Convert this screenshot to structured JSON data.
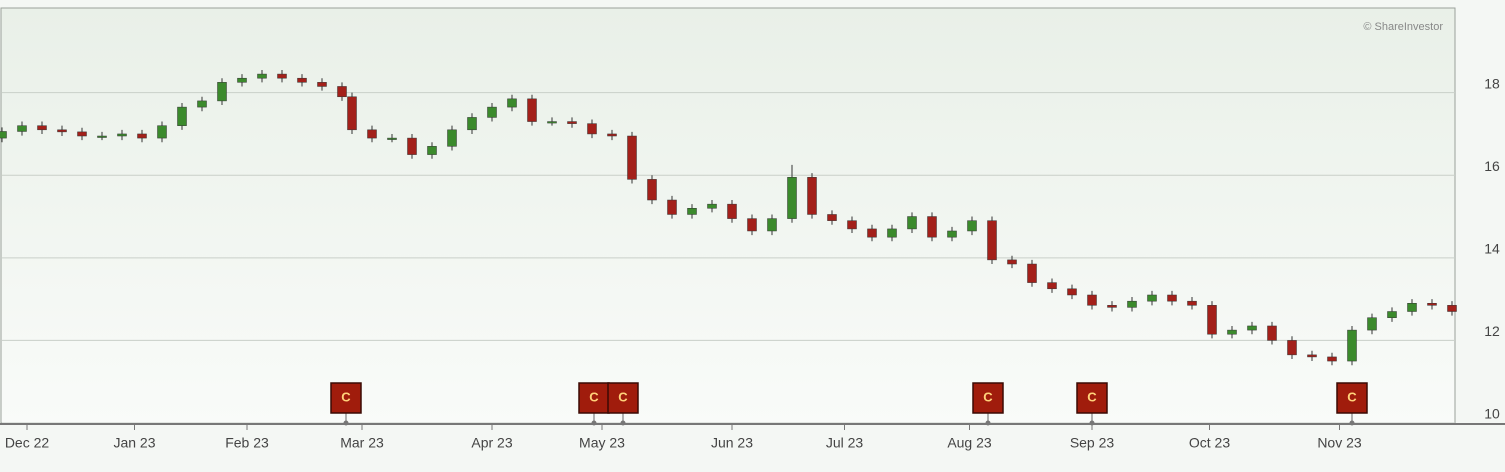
{
  "chart_data": {
    "type": "candlestick",
    "credit": "© ShareInvestor",
    "x": [
      0,
      4,
      8,
      12,
      16,
      20,
      24,
      28,
      32,
      36,
      40,
      44,
      48,
      52,
      56,
      60,
      64,
      68,
      70,
      74,
      78,
      82,
      86,
      90,
      94,
      98,
      102,
      106,
      110,
      114,
      118,
      122,
      126,
      130,
      134,
      138,
      142,
      146,
      150,
      154,
      158,
      162,
      166,
      170,
      174,
      178,
      182,
      186,
      190,
      194,
      198,
      202,
      206,
      210,
      214,
      218,
      222,
      226,
      230,
      234,
      238,
      242,
      246,
      250,
      254,
      258,
      262,
      266,
      270,
      274,
      278,
      282,
      286,
      290
    ],
    "open": [
      16.9,
      17.06,
      17.2,
      17.1,
      17.05,
      16.95,
      16.95,
      17.0,
      16.9,
      17.2,
      17.65,
      17.8,
      18.25,
      18.35,
      18.45,
      18.35,
      18.25,
      18.15,
      17.9,
      17.1,
      16.9,
      16.9,
      16.5,
      16.7,
      17.1,
      17.4,
      17.65,
      17.85,
      17.3,
      17.3,
      17.25,
      17.0,
      16.95,
      15.9,
      15.4,
      15.05,
      15.2,
      15.3,
      14.95,
      14.65,
      14.95,
      15.95,
      15.05,
      14.9,
      14.7,
      14.5,
      14.7,
      15.0,
      14.5,
      14.65,
      14.9,
      13.95,
      13.85,
      13.4,
      13.25,
      13.1,
      12.85,
      12.8,
      12.95,
      13.1,
      12.95,
      12.85,
      12.15,
      12.25,
      12.35,
      12.0,
      11.65,
      11.6,
      11.5,
      12.25,
      12.55,
      12.7,
      12.9,
      12.85
    ],
    "high": [
      17.16,
      17.3,
      17.3,
      17.2,
      17.15,
      17.05,
      17.1,
      17.1,
      17.3,
      17.75,
      17.9,
      18.35,
      18.45,
      18.55,
      18.55,
      18.45,
      18.35,
      18.25,
      18.0,
      17.2,
      17.0,
      17.0,
      16.8,
      17.2,
      17.5,
      17.75,
      17.95,
      17.95,
      17.4,
      17.4,
      17.35,
      17.1,
      17.05,
      16.0,
      15.5,
      15.3,
      15.4,
      15.4,
      15.05,
      15.05,
      16.25,
      16.05,
      15.15,
      15.0,
      14.8,
      14.8,
      15.1,
      15.1,
      14.75,
      15.0,
      15.0,
      14.05,
      13.95,
      13.5,
      13.35,
      13.2,
      12.95,
      13.05,
      13.2,
      13.2,
      13.05,
      12.95,
      12.35,
      12.45,
      12.45,
      12.1,
      11.75,
      11.7,
      12.35,
      12.65,
      12.8,
      13.0,
      13.0,
      12.95
    ],
    "low": [
      16.8,
      16.96,
      17.0,
      16.95,
      16.85,
      16.85,
      16.85,
      16.8,
      16.8,
      17.1,
      17.55,
      17.7,
      18.15,
      18.25,
      18.25,
      18.15,
      18.05,
      17.8,
      17.0,
      16.8,
      16.8,
      16.4,
      16.4,
      16.6,
      17.0,
      17.3,
      17.55,
      17.2,
      17.2,
      17.15,
      16.9,
      16.85,
      15.8,
      15.3,
      14.95,
      14.95,
      15.1,
      14.85,
      14.55,
      14.55,
      14.85,
      14.95,
      14.8,
      14.6,
      14.4,
      14.4,
      14.6,
      14.4,
      14.4,
      14.55,
      13.85,
      13.75,
      13.3,
      13.15,
      13.0,
      12.75,
      12.7,
      12.7,
      12.85,
      12.85,
      12.75,
      12.05,
      12.05,
      12.15,
      11.9,
      11.55,
      11.5,
      11.4,
      11.4,
      12.15,
      12.45,
      12.6,
      12.75,
      12.6
    ],
    "close": [
      17.06,
      17.2,
      17.1,
      17.05,
      16.95,
      16.95,
      17.0,
      16.9,
      17.2,
      17.65,
      17.8,
      18.25,
      18.35,
      18.45,
      18.35,
      18.25,
      18.15,
      17.9,
      17.1,
      16.9,
      16.9,
      16.5,
      16.7,
      17.1,
      17.4,
      17.65,
      17.85,
      17.3,
      17.3,
      17.25,
      17.0,
      16.95,
      15.9,
      15.4,
      15.05,
      15.2,
      15.3,
      14.95,
      14.65,
      14.95,
      15.95,
      15.05,
      14.9,
      14.7,
      14.5,
      14.7,
      15.0,
      14.5,
      14.65,
      14.9,
      13.95,
      13.85,
      13.4,
      13.25,
      13.1,
      12.85,
      12.8,
      12.95,
      13.1,
      12.95,
      12.85,
      12.15,
      12.25,
      12.35,
      12.0,
      11.65,
      11.6,
      11.5,
      12.25,
      12.55,
      12.7,
      12.9,
      12.85,
      12.7
    ],
    "up_color": "#3b8a2c",
    "down_color": "#a3201a",
    "events": [
      {
        "x": 68.8,
        "label": "C"
      },
      {
        "x": 118.4,
        "label": "C"
      },
      {
        "x": 124.2,
        "label": "C"
      },
      {
        "x": 197.2,
        "label": "C"
      },
      {
        "x": 218,
        "label": "C"
      },
      {
        "x": 270,
        "label": "C"
      }
    ],
    "xlim": [
      0,
      290
    ],
    "xticks": [
      {
        "value": 5,
        "label": "Dec 22"
      },
      {
        "value": 26.5,
        "label": "Jan 23"
      },
      {
        "value": 49,
        "label": "Feb 23"
      },
      {
        "value": 72,
        "label": "Mar 23"
      },
      {
        "value": 98,
        "label": "Apr 23"
      },
      {
        "value": 120,
        "label": "May 23"
      },
      {
        "value": 146,
        "label": "Jun 23"
      },
      {
        "value": 168.5,
        "label": "Jul 23"
      },
      {
        "value": 193.5,
        "label": "Aug 23"
      },
      {
        "value": 218,
        "label": "Sep 23"
      },
      {
        "value": 241.5,
        "label": "Oct 23"
      },
      {
        "value": 267.5,
        "label": "Nov 23"
      }
    ],
    "ylim": [
      10,
      20.05
    ],
    "yticks": [
      10,
      12,
      14,
      16,
      18
    ],
    "grid": true
  }
}
